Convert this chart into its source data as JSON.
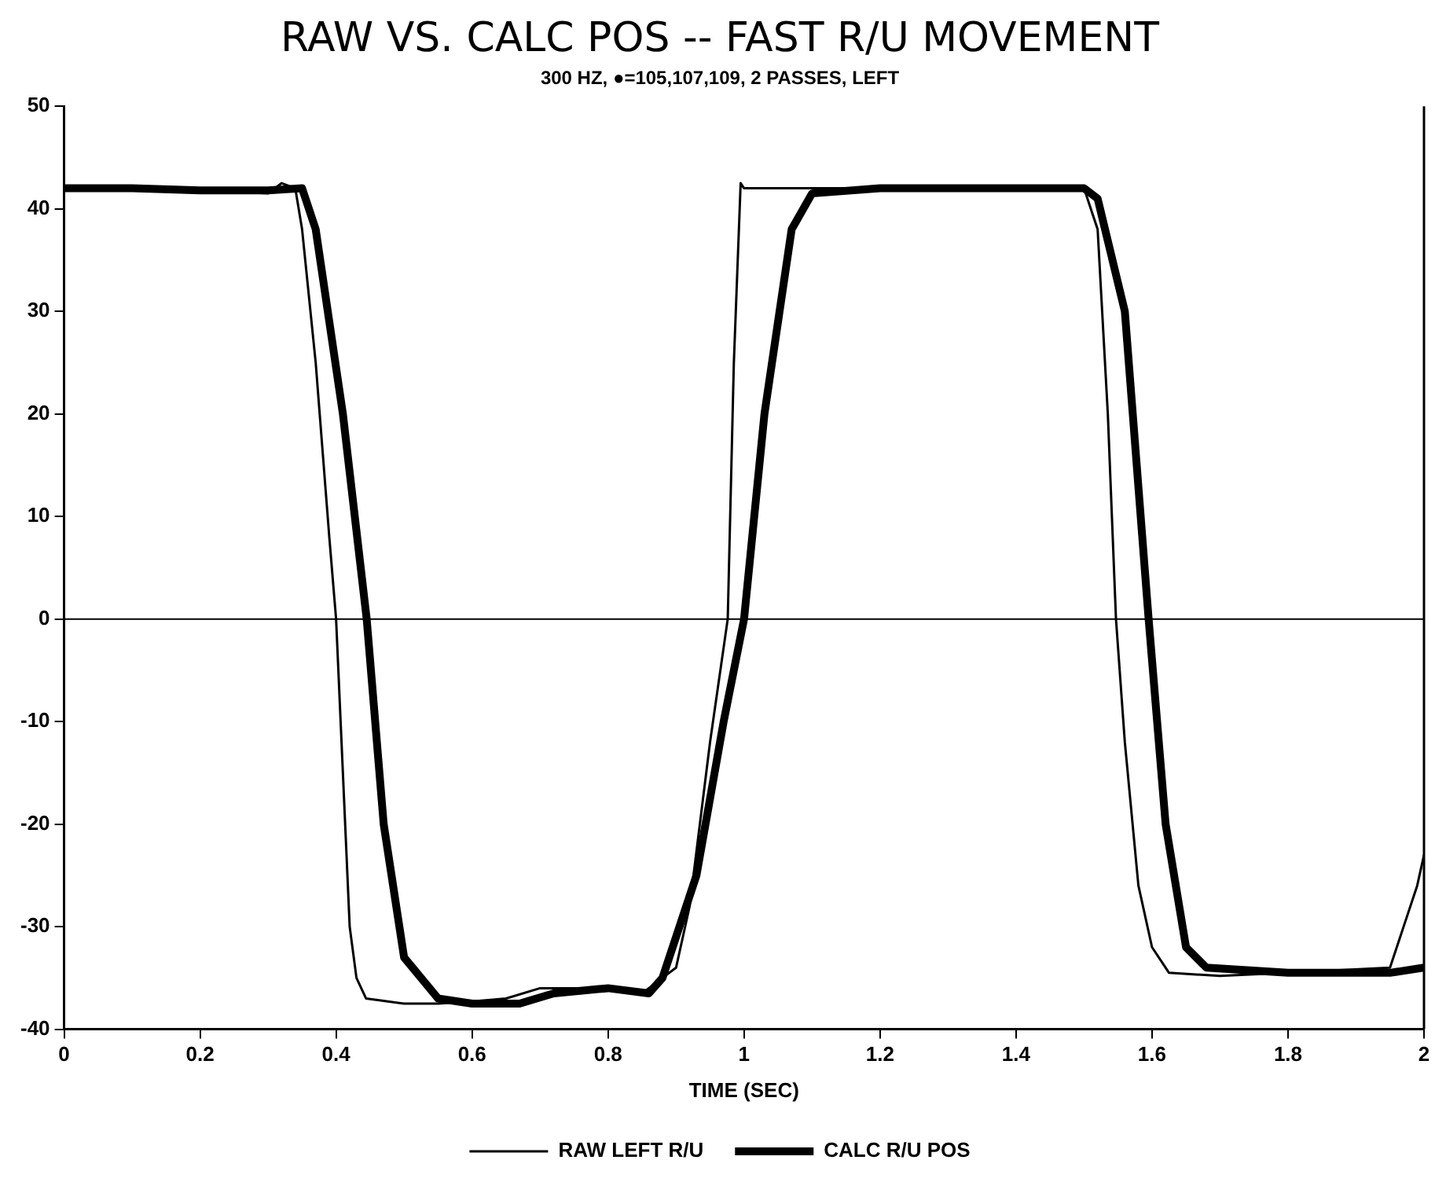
{
  "chart_data": {
    "type": "line",
    "title": "RAW VS. CALC POS -- FAST R/U MOVEMENT",
    "subtitle": "300 HZ, ●=105,107,109, 2 PASSES, LEFT",
    "xlabel": "TIME (SEC)",
    "xlim": [
      0,
      2
    ],
    "xticks": [
      0,
      0.2,
      0.4,
      0.6,
      0.8,
      1,
      1.2,
      1.4,
      1.6,
      1.8,
      2
    ],
    "ylim": [
      -40,
      50
    ],
    "yticks": [
      -40,
      -30,
      -20,
      -10,
      0,
      10,
      20,
      30,
      40,
      50
    ],
    "grid": false,
    "legend": "bottom",
    "marker": "none",
    "ref_lines": [
      {
        "axis": "y",
        "value": 0,
        "color": "#000000"
      }
    ],
    "series": [
      {
        "name": "RAW LEFT R/U",
        "color": "#000000",
        "line_style": "solid",
        "x": [
          0,
          0.1,
          0.2,
          0.3,
          0.32,
          0.34,
          0.35,
          0.37,
          0.39,
          0.4,
          0.41,
          0.42,
          0.43,
          0.444,
          0.5,
          0.55,
          0.6,
          0.65,
          0.7,
          0.8,
          0.85,
          0.88,
          0.9,
          0.92,
          0.95,
          0.976,
          0.985,
          0.995,
          1.0,
          1.1,
          1.3,
          1.5,
          1.52,
          1.535,
          1.547,
          1.56,
          1.58,
          1.6,
          1.625,
          1.7,
          1.8,
          1.95,
          1.97,
          1.99,
          2.0
        ],
        "values": [
          42,
          42,
          41.8,
          41.5,
          42.5,
          42,
          38,
          25,
          8,
          0,
          -15,
          -30,
          -35,
          -37,
          -37.5,
          -37.5,
          -37.3,
          -37,
          -36,
          -36,
          -36.5,
          -35,
          -34,
          -28,
          -12,
          0,
          25,
          42.5,
          42,
          42,
          42,
          42,
          38,
          20,
          0,
          -12,
          -26,
          -32,
          -34.5,
          -34.8,
          -34.5,
          -34,
          -30,
          -26,
          -23
        ]
      },
      {
        "name": "CALC R/U POS",
        "color": "#000000",
        "line_style": "solid",
        "x": [
          0,
          0.1,
          0.2,
          0.3,
          0.35,
          0.37,
          0.41,
          0.445,
          0.47,
          0.5,
          0.55,
          0.6,
          0.67,
          0.72,
          0.8,
          0.86,
          0.88,
          0.93,
          0.97,
          1.0,
          1.03,
          1.07,
          1.1,
          1.2,
          1.5,
          1.52,
          1.56,
          1.595,
          1.62,
          1.65,
          1.68,
          1.8,
          1.95,
          2.0
        ],
        "values": [
          42,
          42,
          41.8,
          41.8,
          42,
          38,
          20,
          0,
          -20,
          -33,
          -37,
          -37.5,
          -37.5,
          -36.5,
          -36,
          -36.5,
          -35,
          -25,
          -10,
          0,
          20,
          38,
          41.5,
          42,
          42,
          41,
          30,
          0,
          -20,
          -32,
          -34,
          -34.5,
          -34.5,
          -34
        ]
      }
    ]
  }
}
